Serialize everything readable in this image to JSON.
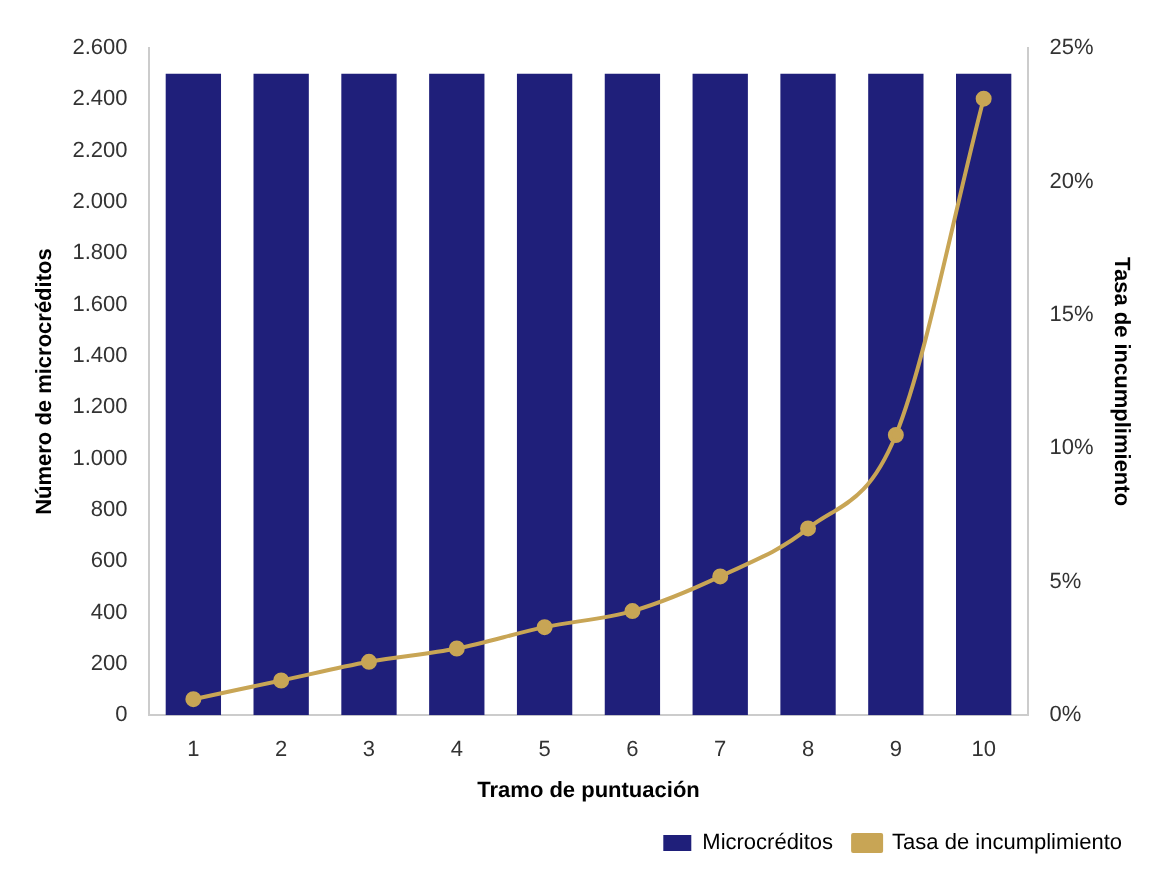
{
  "chart_data": {
    "type": "bar",
    "xlabel": "Tramo de puntuación",
    "ylabel": "Número de microcréditos",
    "y2label": "Tasa de incumplimiento",
    "categories": [
      "1",
      "2",
      "3",
      "4",
      "5",
      "6",
      "7",
      "8",
      "9",
      "10"
    ],
    "series": [
      {
        "name": "Microcréditos",
        "color": "#1f1f7a",
        "values": [
          2500,
          2500,
          2500,
          2500,
          2500,
          2500,
          2500,
          2500,
          2500,
          2500
        ]
      },
      {
        "name": "Tasa de incumplimiento",
        "type": "line",
        "axis": "y2",
        "color": "#c8a555",
        "marker": "circle",
        "values": [
          0.6,
          1.3,
          2.0,
          2.5,
          3.3,
          3.9,
          5.2,
          7.0,
          10.5,
          23.1
        ]
      }
    ],
    "ylim": [
      0,
      2600
    ],
    "yticks": [
      {
        "value": 0,
        "label": "0"
      },
      {
        "value": 200,
        "label": "200"
      },
      {
        "value": 400,
        "label": "400"
      },
      {
        "value": 600,
        "label": "600"
      },
      {
        "value": 800,
        "label": "800"
      },
      {
        "value": 1000,
        "label": "1.000"
      },
      {
        "value": 1200,
        "label": "1.200"
      },
      {
        "value": 1400,
        "label": "1.400"
      },
      {
        "value": 1600,
        "label": "1.600"
      },
      {
        "value": 1800,
        "label": "1.800"
      },
      {
        "value": 2000,
        "label": "2.000"
      },
      {
        "value": 2200,
        "label": "2.200"
      },
      {
        "value": 2400,
        "label": "2.400"
      },
      {
        "value": 2600,
        "label": "2.600"
      }
    ],
    "y2lim": [
      0,
      25
    ],
    "y2ticks": [
      {
        "value": 0,
        "label": "0%"
      },
      {
        "value": 5,
        "label": "5%"
      },
      {
        "value": 10,
        "label": "10%"
      },
      {
        "value": 15,
        "label": "15%"
      },
      {
        "value": 20,
        "label": "20%"
      },
      {
        "value": 25,
        "label": "25%"
      }
    ],
    "grid": false,
    "legend": "bottom right"
  }
}
